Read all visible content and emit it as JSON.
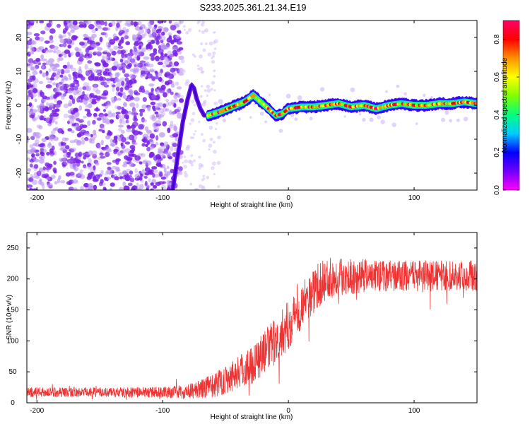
{
  "title": "S233.2025.361.21.34.E19",
  "chart_data": [
    {
      "type": "heatmap",
      "xlabel": "Height of straight line (km)",
      "ylabel": "Frequency (Hz)",
      "xlim": [
        -208,
        150
      ],
      "ylim": [
        -25,
        25
      ],
      "x_ticks": [
        -200,
        -100,
        0,
        100
      ],
      "y_ticks": [
        20,
        10,
        0,
        -10,
        -20
      ],
      "colorbar": {
        "label": "Normalized spectral amplitude",
        "range": [
          0.0,
          0.9
        ],
        "ticks": [
          0.0,
          0.2,
          0.4,
          0.6,
          0.8
        ],
        "colors": [
          "#ff00ff",
          "#7000ff",
          "#0000ff",
          "#00ccff",
          "#00ff80",
          "#80ff00",
          "#ffff00",
          "#ff9000",
          "#ff0000",
          "#ff0066"
        ]
      },
      "noise_region": {
        "x_from": -208,
        "x_to": -85,
        "freq_from": -25,
        "freq_to": 25
      },
      "chirp": {
        "x": [
          -92,
          -88,
          -84,
          -80,
          -77,
          -75,
          -73,
          -70,
          -67,
          -64
        ],
        "freq": [
          -25,
          -15,
          -5,
          2,
          6,
          5,
          2,
          -1,
          -3,
          -3
        ]
      },
      "ridge": {
        "x": [
          -64,
          -55,
          -45,
          -35,
          -28,
          -22,
          -16,
          -10,
          -5,
          0,
          10,
          20,
          30,
          40,
          50,
          60,
          70,
          80,
          90,
          100,
          110,
          120,
          130,
          140,
          150
        ],
        "freq": [
          -3,
          -2,
          -0.5,
          1,
          3,
          1,
          -1,
          -3,
          -2.5,
          -1,
          -0.5,
          -0.5,
          0,
          0.5,
          -0.5,
          0,
          -1,
          0,
          0.5,
          0,
          0,
          0.5,
          0.5,
          1,
          0.5
        ]
      }
    },
    {
      "type": "line",
      "xlabel": "Height of straight line (km)",
      "ylabel": "SNR (10 * v/v)",
      "xlim": [
        -208,
        150
      ],
      "ylim": [
        0,
        275
      ],
      "x_ticks": [
        -200,
        -100,
        0,
        100
      ],
      "y_ticks": [
        0,
        50,
        100,
        150,
        200,
        250
      ],
      "color": "#ee3333",
      "envelope": {
        "x": [
          -208,
          -150,
          -100,
          -80,
          -70,
          -60,
          -50,
          -40,
          -30,
          -20,
          -10,
          0,
          10,
          20,
          30,
          40,
          50,
          60,
          80,
          100,
          120,
          150
        ],
        "mean": [
          17,
          17,
          17,
          18,
          22,
          28,
          38,
          50,
          60,
          80,
          100,
          125,
          155,
          180,
          200,
          205,
          205,
          205,
          205,
          205,
          205,
          205
        ],
        "spread": [
          8,
          8,
          9,
          12,
          15,
          20,
          25,
          28,
          32,
          35,
          38,
          40,
          38,
          36,
          35,
          32,
          30,
          28,
          25,
          25,
          25,
          25
        ]
      }
    }
  ]
}
